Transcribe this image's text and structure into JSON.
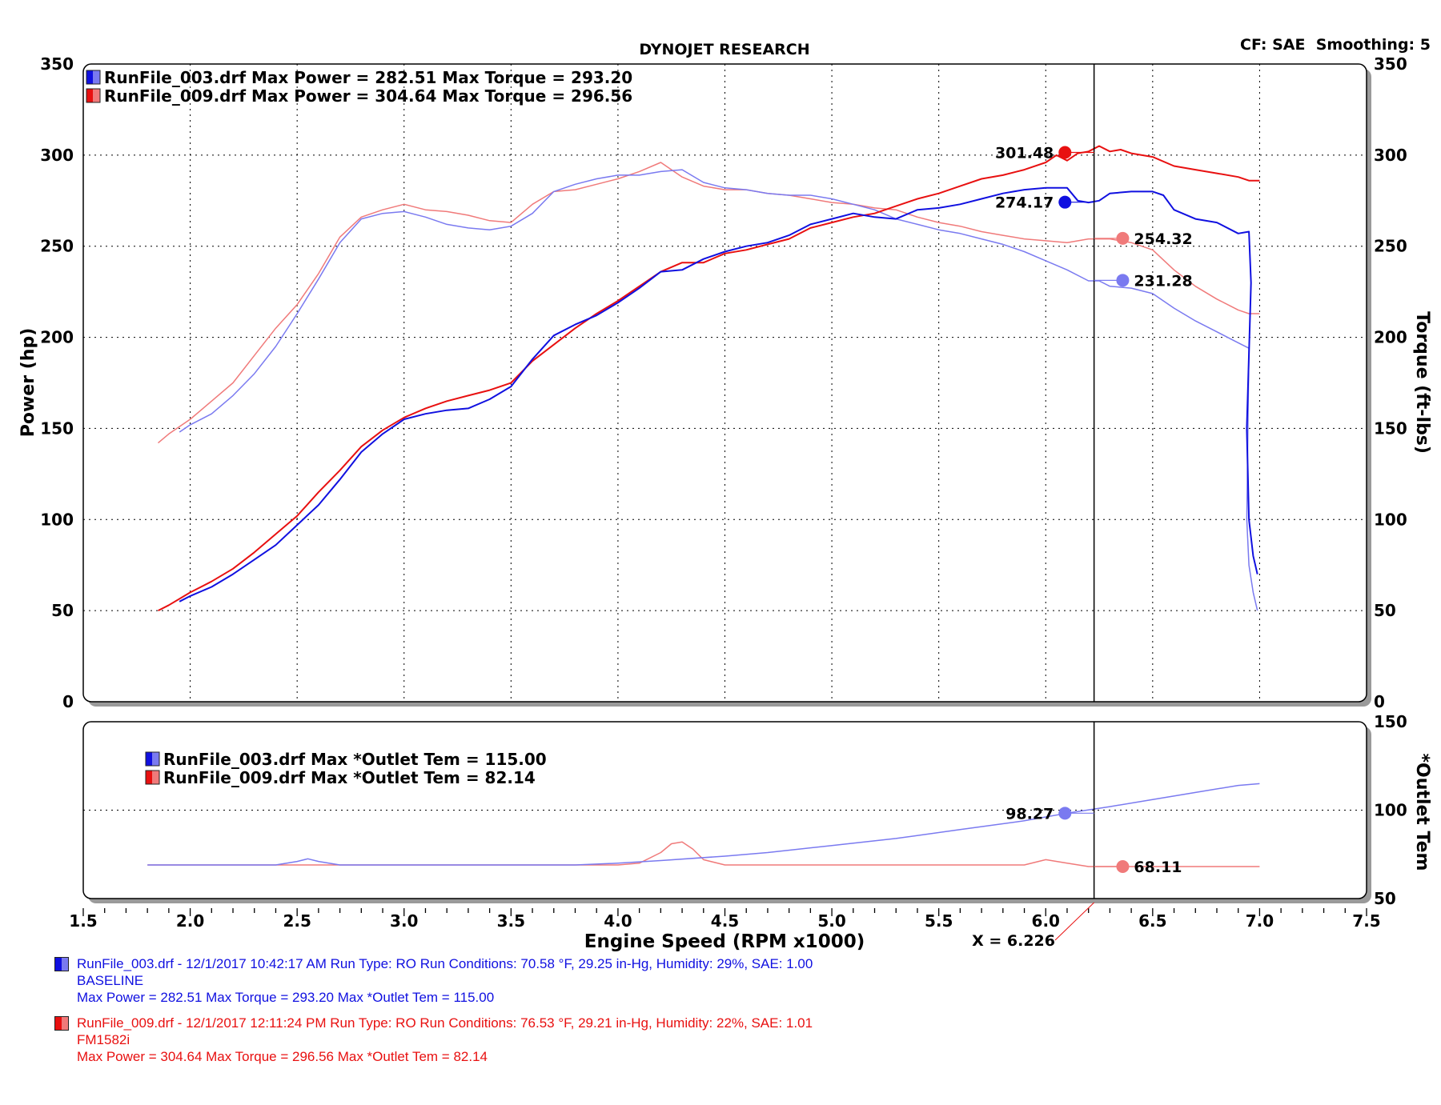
{
  "header": {
    "title": "DYNOJET RESEARCH",
    "settings": "CF: SAE  Smoothing: 5"
  },
  "colors": {
    "run003_power": "#1010e0",
    "run003_torque": "#7a7af0",
    "run009_power": "#e81010",
    "run009_torque": "#f07a7a",
    "cursor": "#000000"
  },
  "chart_data": [
    {
      "type": "line",
      "title": "DYNOJET RESEARCH",
      "xlabel": "Engine Speed (RPM x1000)",
      "ylabel": "Power (hp)",
      "y2label": "Torque (ft-lbs)",
      "xlim": [
        1.5,
        7.5
      ],
      "ylim": [
        0,
        350
      ],
      "x_ticks": [
        "1.5",
        "2.0",
        "2.5",
        "3.0",
        "3.5",
        "4.0",
        "4.5",
        "5.0",
        "5.5",
        "6.0",
        "6.5",
        "7.0",
        "7.5"
      ],
      "y_ticks": [
        "0",
        "50",
        "100",
        "150",
        "200",
        "250",
        "300",
        "350"
      ],
      "y2_ticks": [
        "0",
        "50",
        "100",
        "150",
        "200",
        "250",
        "300",
        "350"
      ],
      "grid": true,
      "legend": [
        {
          "text": "RunFile_003.drf Max Power = 282.51     Max Torque = 293.20",
          "color": "#1010e0"
        },
        {
          "text": "RunFile_009.drf Max Power = 304.64     Max Torque = 296.56",
          "color": "#e81010"
        }
      ],
      "cursor_x": 6.226,
      "series": [
        {
          "name": "RunFile_003.drf Power",
          "color": "#1010e0",
          "width": 2,
          "x": [
            1.95,
            2.0,
            2.1,
            2.2,
            2.3,
            2.4,
            2.5,
            2.6,
            2.7,
            2.8,
            2.9,
            3.0,
            3.1,
            3.2,
            3.3,
            3.4,
            3.5,
            3.6,
            3.7,
            3.8,
            3.9,
            4.0,
            4.1,
            4.2,
            4.3,
            4.4,
            4.5,
            4.6,
            4.7,
            4.8,
            4.9,
            5.0,
            5.1,
            5.2,
            5.3,
            5.4,
            5.5,
            5.6,
            5.7,
            5.8,
            5.9,
            6.0,
            6.1,
            6.15,
            6.2,
            6.25,
            6.3,
            6.4,
            6.5,
            6.55,
            6.6,
            6.7,
            6.8,
            6.9,
            6.95,
            6.96,
            6.94,
            6.95,
            6.97,
            6.99
          ],
          "y": [
            55,
            58,
            63,
            70,
            78,
            86,
            97,
            108,
            122,
            137,
            147,
            155,
            158,
            160,
            161,
            166,
            173,
            188,
            201,
            207,
            212,
            219,
            227,
            236,
            237,
            243,
            247,
            250,
            252,
            256,
            262,
            265,
            268,
            266,
            265,
            270,
            271,
            273,
            276,
            279,
            281,
            282,
            282,
            275,
            274,
            275,
            279,
            280,
            280,
            278,
            270,
            265,
            263,
            257,
            258,
            230,
            150,
            100,
            80,
            70
          ]
        },
        {
          "name": "RunFile_009.drf Power",
          "color": "#e81010",
          "width": 2,
          "x": [
            1.85,
            1.9,
            2.0,
            2.1,
            2.2,
            2.3,
            2.4,
            2.5,
            2.6,
            2.7,
            2.8,
            2.9,
            3.0,
            3.1,
            3.2,
            3.3,
            3.4,
            3.5,
            3.6,
            3.7,
            3.8,
            3.9,
            4.0,
            4.1,
            4.2,
            4.3,
            4.4,
            4.5,
            4.6,
            4.7,
            4.8,
            4.9,
            5.0,
            5.1,
            5.2,
            5.3,
            5.4,
            5.5,
            5.6,
            5.7,
            5.8,
            5.9,
            6.0,
            6.05,
            6.1,
            6.15,
            6.2,
            6.25,
            6.3,
            6.35,
            6.4,
            6.5,
            6.6,
            6.7,
            6.8,
            6.9,
            6.95,
            7.0
          ],
          "y": [
            50,
            53,
            60,
            66,
            73,
            82,
            92,
            102,
            115,
            127,
            140,
            149,
            156,
            161,
            165,
            168,
            171,
            175,
            187,
            196,
            205,
            213,
            220,
            228,
            236,
            241,
            241,
            246,
            248,
            251,
            254,
            260,
            263,
            266,
            268,
            272,
            276,
            279,
            283,
            287,
            289,
            292,
            296,
            300,
            297,
            301,
            302,
            305,
            302,
            303,
            301,
            299,
            294,
            292,
            290,
            288,
            286,
            286
          ]
        },
        {
          "name": "RunFile_003.drf Torque",
          "color": "#7a7af0",
          "width": 1.5,
          "x": [
            1.95,
            2.0,
            2.1,
            2.2,
            2.3,
            2.4,
            2.5,
            2.6,
            2.7,
            2.8,
            2.9,
            3.0,
            3.1,
            3.2,
            3.3,
            3.4,
            3.5,
            3.6,
            3.7,
            3.8,
            3.9,
            4.0,
            4.1,
            4.2,
            4.3,
            4.4,
            4.5,
            4.6,
            4.7,
            4.8,
            4.9,
            5.0,
            5.1,
            5.2,
            5.3,
            5.4,
            5.5,
            5.6,
            5.7,
            5.8,
            5.9,
            6.0,
            6.1,
            6.2,
            6.25,
            6.3,
            6.4,
            6.5,
            6.6,
            6.7,
            6.8,
            6.9,
            6.95,
            6.94,
            6.95,
            6.97,
            6.99
          ],
          "y": [
            148,
            152,
            158,
            168,
            180,
            195,
            213,
            232,
            252,
            265,
            268,
            269,
            266,
            262,
            260,
            259,
            261,
            268,
            280,
            284,
            287,
            289,
            289,
            291,
            292,
            285,
            282,
            281,
            279,
            278,
            278,
            276,
            273,
            270,
            265,
            262,
            259,
            257,
            254,
            251,
            247,
            242,
            237,
            231,
            231,
            228,
            227,
            224,
            216,
            209,
            203,
            197,
            194,
            100,
            75,
            60,
            50
          ]
        },
        {
          "name": "RunFile_009.drf Torque",
          "color": "#f07a7a",
          "width": 1.5,
          "x": [
            1.85,
            1.9,
            2.0,
            2.1,
            2.2,
            2.3,
            2.4,
            2.5,
            2.6,
            2.7,
            2.8,
            2.9,
            3.0,
            3.1,
            3.2,
            3.3,
            3.4,
            3.5,
            3.6,
            3.7,
            3.8,
            3.9,
            4.0,
            4.1,
            4.2,
            4.3,
            4.4,
            4.5,
            4.6,
            4.7,
            4.8,
            4.9,
            5.0,
            5.1,
            5.2,
            5.3,
            5.4,
            5.5,
            5.6,
            5.7,
            5.8,
            5.9,
            6.0,
            6.1,
            6.2,
            6.25,
            6.3,
            6.4,
            6.5,
            6.6,
            6.7,
            6.8,
            6.9,
            6.95,
            7.0
          ],
          "y": [
            142,
            147,
            155,
            165,
            175,
            190,
            205,
            218,
            235,
            255,
            266,
            270,
            273,
            270,
            269,
            267,
            264,
            263,
            273,
            280,
            281,
            284,
            287,
            291,
            296,
            288,
            283,
            281,
            281,
            279,
            278,
            276,
            274,
            273,
            271,
            270,
            266,
            263,
            261,
            258,
            256,
            254,
            253,
            252,
            254,
            254,
            254,
            252,
            248,
            237,
            228,
            221,
            215,
            213,
            213
          ]
        }
      ],
      "markers": [
        {
          "series": "RunFile_009.drf Power",
          "x": 6.09,
          "y": 301.48,
          "label": "301.48",
          "color": "#e81010"
        },
        {
          "series": "RunFile_003.drf Power",
          "x": 6.09,
          "y": 274.17,
          "label": "274.17",
          "color": "#1010e0"
        },
        {
          "series": "RunFile_009.drf Torque",
          "x": 6.36,
          "y": 254.32,
          "label": "254.32",
          "color": "#f07a7a"
        },
        {
          "series": "RunFile_003.drf Torque",
          "x": 6.36,
          "y": 231.28,
          "label": "231.28",
          "color": "#7a7af0"
        }
      ]
    },
    {
      "type": "line",
      "ylabel": "*Outlet Tem",
      "xlim": [
        1.5,
        7.5
      ],
      "ylim": [
        50,
        150
      ],
      "y2_ticks": [
        "50",
        "100",
        "150"
      ],
      "grid": true,
      "legend": [
        {
          "text": "RunFile_003.drf Max *Outlet Tem = 115.00",
          "color": "#1010e0"
        },
        {
          "text": "RunFile_009.drf Max *Outlet Tem = 82.14",
          "color": "#e81010"
        }
      ],
      "cursor_x": 6.226,
      "cursor_label": "X = 6.226",
      "series": [
        {
          "name": "RunFile_003.drf *Outlet Tem",
          "color": "#7a7af0",
          "width": 1.5,
          "x": [
            1.8,
            2.4,
            2.5,
            2.55,
            2.6,
            2.7,
            3.0,
            3.5,
            3.8,
            4.0,
            4.2,
            4.5,
            4.7,
            5.0,
            5.3,
            5.6,
            5.9,
            6.1,
            6.3,
            6.5,
            6.7,
            6.9,
            7.0
          ],
          "y": [
            69,
            69,
            71,
            72.5,
            71,
            69,
            69,
            69,
            69,
            70,
            71.5,
            74,
            76,
            80,
            84,
            89,
            94,
            98.3,
            102,
            106,
            110,
            114,
            115
          ]
        },
        {
          "name": "RunFile_009.drf *Outlet Tem",
          "color": "#f07a7a",
          "width": 1.5,
          "x": [
            1.8,
            2.0,
            3.0,
            4.0,
            4.1,
            4.2,
            4.25,
            4.3,
            4.35,
            4.4,
            4.5,
            5.0,
            5.5,
            5.9,
            6.0,
            6.1,
            6.2,
            6.5,
            7.0
          ],
          "y": [
            69,
            69,
            69,
            69,
            70,
            76,
            81,
            82,
            78,
            72,
            69,
            69,
            69,
            69,
            72,
            70,
            68.1,
            68.1,
            68.1
          ]
        }
      ],
      "markers": [
        {
          "series": "RunFile_003.drf *Outlet Tem",
          "x": 6.09,
          "y": 98.27,
          "label": "98.27",
          "color": "#7a7af0"
        },
        {
          "series": "RunFile_009.drf *Outlet Tem",
          "x": 6.36,
          "y": 68.11,
          "label": "68.11",
          "color": "#f07a7a"
        }
      ]
    }
  ],
  "footer": {
    "run003": {
      "line1": "RunFile_003.drf - 12/1/2017 10:42:17 AM  Run Type: RO  Run Conditions: 70.58 °F, 29.25 in-Hg,  Humidity:  29%, SAE: 1.00",
      "line2": "BASELINE",
      "line3": "Max Power = 282.51  Max Torque = 293.20  Max *Outlet Tem = 115.00",
      "color": "#1010e0"
    },
    "run009": {
      "line1": "RunFile_009.drf - 12/1/2017 12:11:24 PM  Run Type: RO  Run Conditions: 76.53 °F, 29.21 in-Hg,  Humidity:  22%, SAE: 1.01",
      "line2": "FM1582i",
      "line3": "Max Power = 304.64  Max Torque = 296.56  Max *Outlet Tem = 82.14",
      "color": "#e81010"
    }
  }
}
